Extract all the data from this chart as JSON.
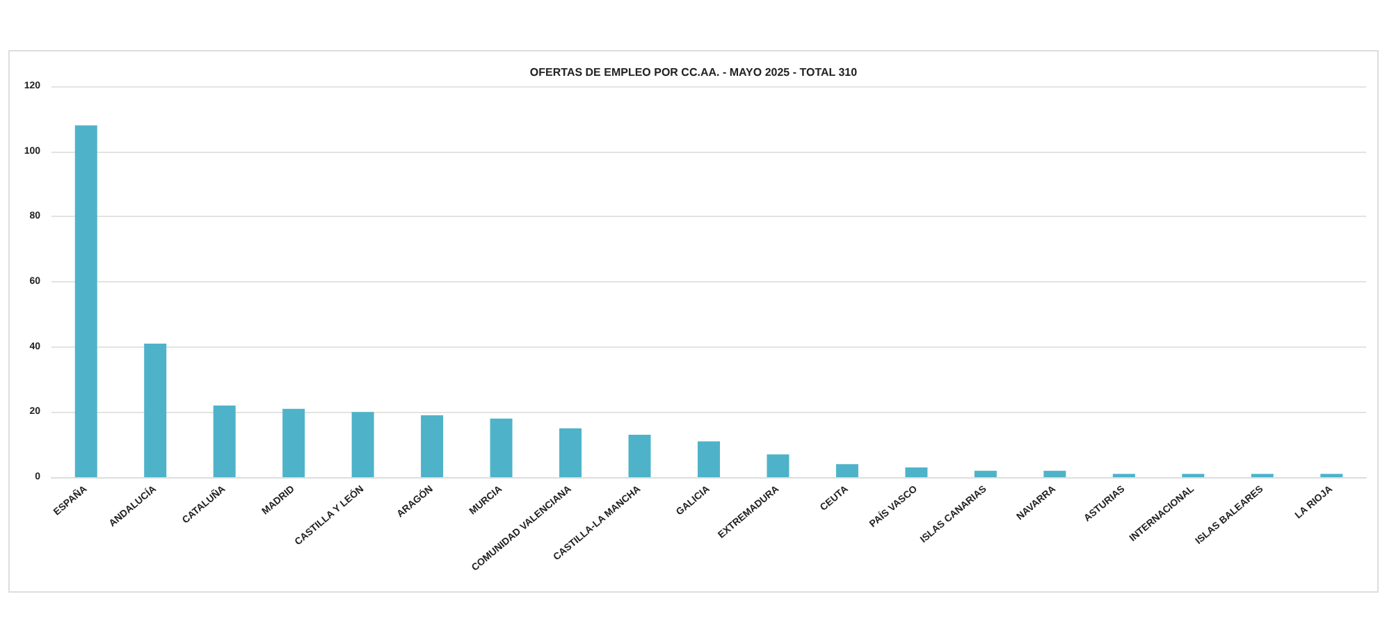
{
  "chart_data": {
    "type": "bar",
    "title": "OFERTAS DE EMPLEO POR CC.AA. - MAYO 2025 - TOTAL 310",
    "categories": [
      "ESPAÑA",
      "ANDALUCÍA",
      "CATALUÑA",
      "MADRID",
      "CASTILLA Y LEÓN",
      "ARAGÓN",
      "MURCIA",
      "COMUNIDAD VALENCIANA",
      "CASTILLA-LA MANCHA",
      "GALICIA",
      "EXTREMADURA",
      "CEUTA",
      "PAÍS VASCO",
      "ISLAS CANARIAS",
      "NAVARRA",
      "ASTURIAS",
      "INTERNACIONAL",
      "ISLAS BALEARES",
      "LA RIOJA"
    ],
    "values": [
      108,
      41,
      22,
      21,
      20,
      19,
      18,
      15,
      13,
      11,
      7,
      4,
      3,
      2,
      2,
      1,
      1,
      1,
      1
    ],
    "color": "#4eb3c9",
    "ylim": [
      0,
      120
    ],
    "yticks": [
      0,
      20,
      40,
      60,
      80,
      100,
      120
    ],
    "grid": "y"
  }
}
